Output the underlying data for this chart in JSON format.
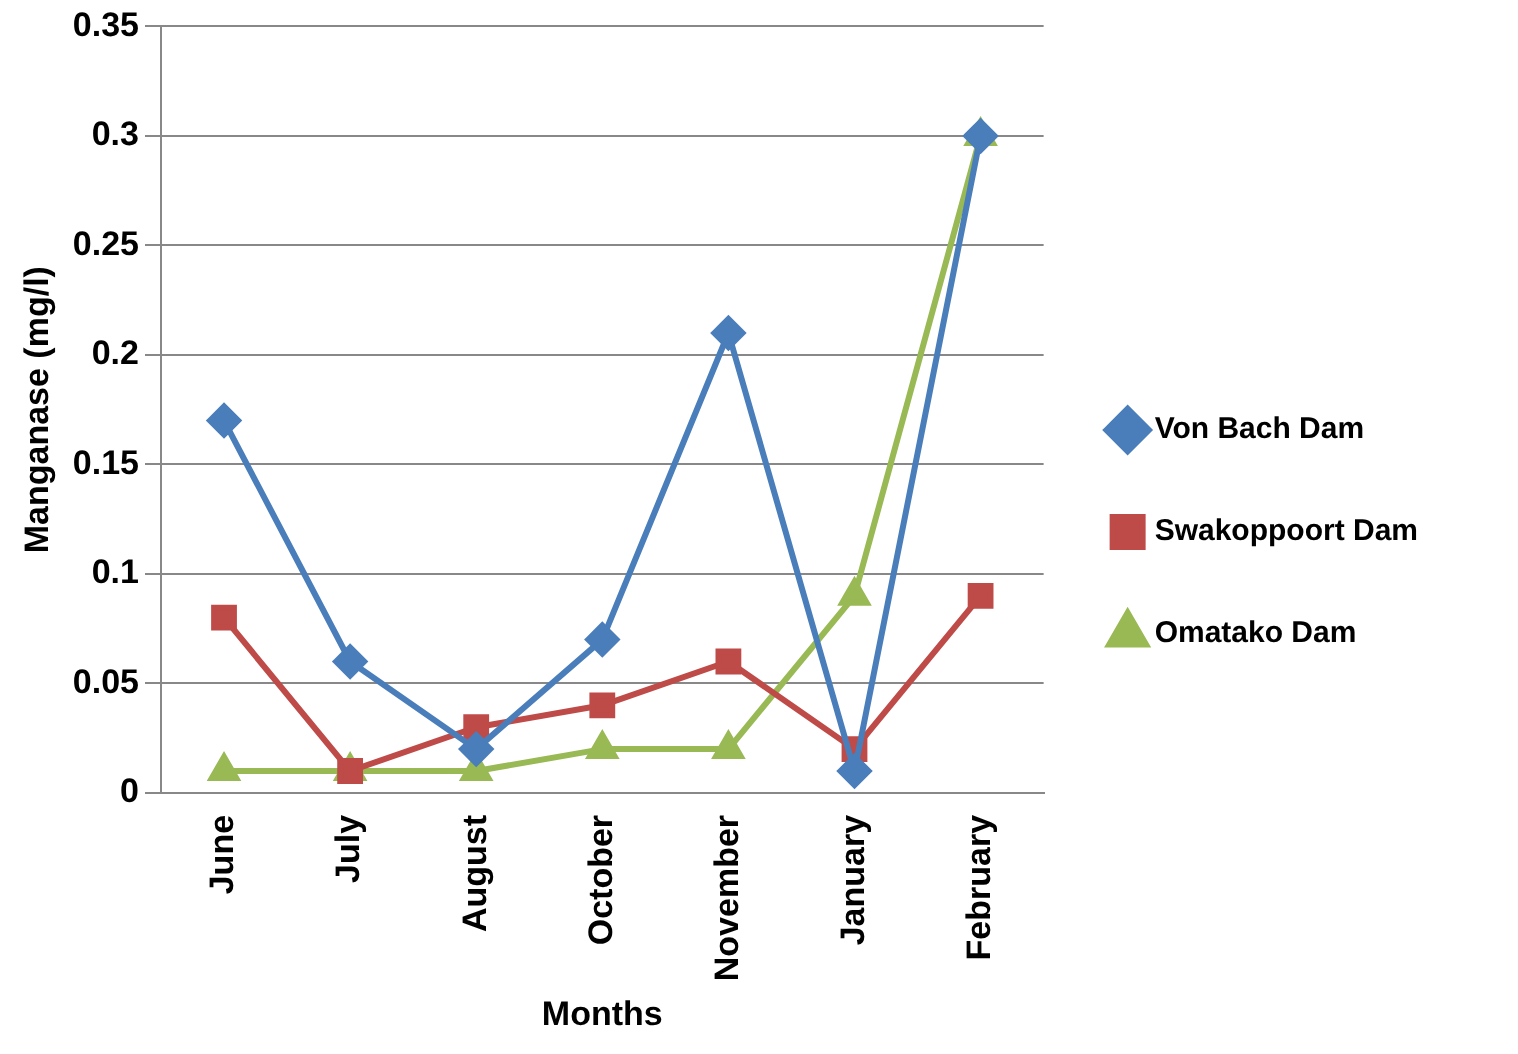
{
  "chart_data": {
    "type": "line",
    "xlabel": "Months",
    "ylabel": "Manganase (mg/l)",
    "categories": [
      "June",
      "July",
      "August",
      "October",
      "November",
      "January",
      "February"
    ],
    "series": [
      {
        "name": "Von Bach Dam",
        "color": "#4a7ebb",
        "marker": "diamond",
        "values": [
          0.17,
          0.06,
          0.02,
          0.07,
          0.21,
          0.01,
          0.3
        ]
      },
      {
        "name": "Swakoppoort Dam",
        "color": "#be4b48",
        "marker": "square",
        "values": [
          0.08,
          0.01,
          0.03,
          0.04,
          0.06,
          0.02,
          0.09
        ]
      },
      {
        "name": "Omatako Dam",
        "color": "#98b954",
        "marker": "triangle",
        "values": [
          0.01,
          0.01,
          0.01,
          0.02,
          0.02,
          0.09,
          0.3
        ]
      }
    ],
    "ylim": [
      0,
      0.35
    ],
    "yticks": [
      0,
      0.05,
      0.1,
      0.15,
      0.2,
      0.25,
      0.3,
      0.35
    ],
    "grid": "y",
    "legend": "right",
    "line_style": "solid"
  }
}
